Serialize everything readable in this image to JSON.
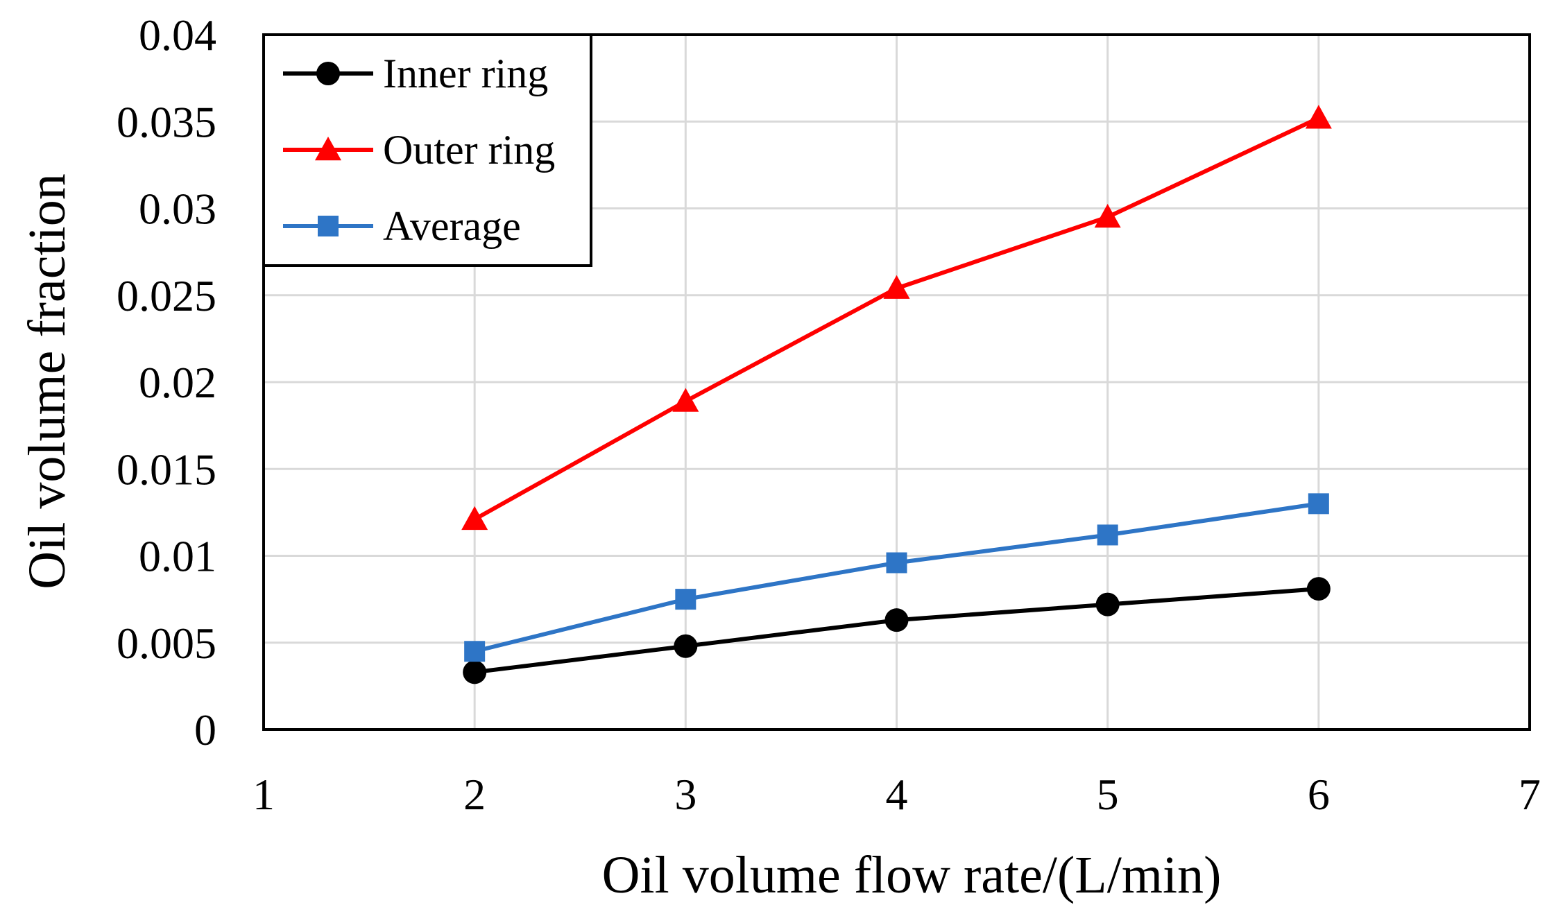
{
  "chart_data": {
    "type": "line",
    "title": "",
    "xlabel": "Oil volume flow rate/(L/min)",
    "ylabel": "Oil volume fraction",
    "xlim": [
      1,
      7
    ],
    "ylim": [
      0,
      0.04
    ],
    "x_ticks": [
      "1",
      "2",
      "3",
      "4",
      "5",
      "6",
      "7"
    ],
    "y_ticks": [
      "0",
      "0.005",
      "0.01",
      "0.015",
      "0.02",
      "0.025",
      "0.03",
      "0.035",
      "0.04"
    ],
    "grid": true,
    "legend_position": "top-left",
    "series": [
      {
        "name": "Inner ring",
        "color": "#000000",
        "marker": "circle",
        "x": [
          2,
          3,
          4,
          5,
          6
        ],
        "values": [
          0.0033,
          0.0048,
          0.0063,
          0.0072,
          0.0081
        ]
      },
      {
        "name": "Outer ring",
        "color": "#ff0000",
        "marker": "triangle",
        "x": [
          2,
          3,
          4,
          5,
          6
        ],
        "values": [
          0.0121,
          0.0189,
          0.0254,
          0.0295,
          0.0352
        ]
      },
      {
        "name": "Average",
        "color": "#2e75c6",
        "marker": "square",
        "x": [
          2,
          3,
          4,
          5,
          6
        ],
        "values": [
          0.0045,
          0.0075,
          0.0096,
          0.0112,
          0.013
        ]
      }
    ]
  }
}
